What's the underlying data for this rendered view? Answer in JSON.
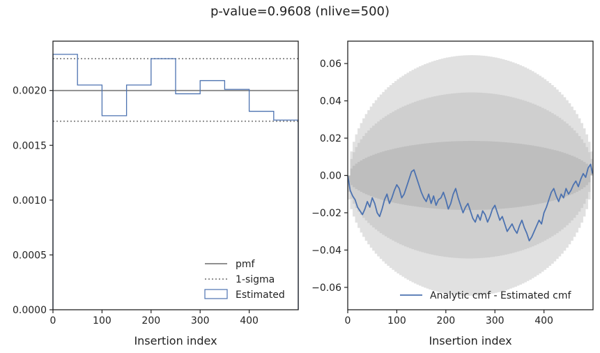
{
  "figure": {
    "title": "p-value=0.9608 (nlive=500)"
  },
  "chart_data": [
    {
      "type": "step",
      "xlabel": "Insertion index",
      "ylabel": "",
      "xlim": [
        0,
        500
      ],
      "ylim": [
        0,
        0.00245
      ],
      "xticks": [
        0,
        100,
        200,
        300,
        400
      ],
      "xtick_labels": [
        "0",
        "100",
        "200",
        "300",
        "400"
      ],
      "yticks": [
        0,
        0.0005,
        0.001,
        0.0015,
        0.002
      ],
      "ytick_labels": [
        "0.0000",
        "0.0005",
        "0.0010",
        "0.0015",
        "0.0020"
      ],
      "pmf": 0.002,
      "sigma_band": [
        0.00172,
        0.00229
      ],
      "bin_edges": [
        0,
        50,
        100,
        150,
        200,
        250,
        300,
        350,
        400,
        450,
        500
      ],
      "estimated": [
        0.00233,
        0.00205,
        0.00177,
        0.00205,
        0.00229,
        0.00197,
        0.00209,
        0.00201,
        0.00181,
        0.00173
      ],
      "legend": {
        "placement": "lower-right",
        "entries": [
          {
            "label": "pmf",
            "style": "solid",
            "color": "#808080"
          },
          {
            "label": "1-sigma",
            "style": "dotted",
            "color": "#808080"
          },
          {
            "label": "Estimated",
            "style": "box",
            "color": "#4c72b0"
          }
        ]
      }
    },
    {
      "type": "line",
      "xlabel": "Insertion index",
      "ylabel": "",
      "xlim": [
        0,
        500
      ],
      "ylim": [
        -0.072,
        0.072
      ],
      "xticks": [
        0,
        100,
        200,
        300,
        400
      ],
      "xtick_labels": [
        "0",
        "100",
        "200",
        "300",
        "400"
      ],
      "yticks": [
        -0.06,
        -0.04,
        -0.02,
        0.0,
        0.02,
        0.04,
        0.06
      ],
      "ytick_labels": [
        "−0.06",
        "−0.04",
        "−0.02",
        "0.00",
        "0.02",
        "0.04",
        "0.06"
      ],
      "bands_sigma": [
        1,
        2,
        3
      ],
      "band_halfwidth_max": [
        0.0185,
        0.0445,
        0.0645
      ],
      "band_colors": [
        "#bebebe",
        "#cfcfcf",
        "#e1e1e1"
      ],
      "series": [
        {
          "name": "Analytic cmf - Estimated cmf",
          "color": "#4c72b0",
          "x": [
            0,
            5,
            10,
            15,
            20,
            25,
            30,
            35,
            40,
            45,
            50,
            55,
            60,
            65,
            70,
            75,
            80,
            85,
            90,
            95,
            100,
            105,
            110,
            115,
            120,
            125,
            130,
            135,
            140,
            145,
            150,
            155,
            160,
            165,
            170,
            175,
            180,
            185,
            190,
            195,
            200,
            205,
            210,
            215,
            220,
            225,
            230,
            235,
            240,
            245,
            250,
            255,
            260,
            265,
            270,
            275,
            280,
            285,
            290,
            295,
            300,
            305,
            310,
            315,
            320,
            325,
            330,
            335,
            340,
            345,
            350,
            355,
            360,
            365,
            370,
            375,
            380,
            385,
            390,
            395,
            400,
            405,
            410,
            415,
            420,
            425,
            430,
            435,
            440,
            445,
            450,
            455,
            460,
            465,
            470,
            475,
            480,
            485,
            490,
            495,
            499
          ],
          "y": [
            0.0,
            -0.008,
            -0.011,
            -0.013,
            -0.017,
            -0.019,
            -0.021,
            -0.018,
            -0.014,
            -0.017,
            -0.012,
            -0.015,
            -0.02,
            -0.022,
            -0.018,
            -0.013,
            -0.01,
            -0.015,
            -0.012,
            -0.008,
            -0.005,
            -0.007,
            -0.012,
            -0.01,
            -0.006,
            -0.002,
            0.002,
            0.003,
            -0.001,
            -0.005,
            -0.009,
            -0.012,
            -0.014,
            -0.01,
            -0.015,
            -0.011,
            -0.016,
            -0.013,
            -0.012,
            -0.009,
            -0.013,
            -0.018,
            -0.015,
            -0.01,
            -0.007,
            -0.012,
            -0.016,
            -0.02,
            -0.017,
            -0.015,
            -0.019,
            -0.023,
            -0.025,
            -0.021,
            -0.024,
            -0.019,
            -0.021,
            -0.025,
            -0.022,
            -0.018,
            -0.016,
            -0.02,
            -0.024,
            -0.022,
            -0.026,
            -0.03,
            -0.028,
            -0.026,
            -0.029,
            -0.031,
            -0.027,
            -0.024,
            -0.028,
            -0.031,
            -0.035,
            -0.033,
            -0.03,
            -0.027,
            -0.024,
            -0.026,
            -0.02,
            -0.017,
            -0.013,
            -0.009,
            -0.007,
            -0.011,
            -0.014,
            -0.01,
            -0.012,
            -0.007,
            -0.01,
            -0.008,
            -0.005,
            -0.003,
            -0.006,
            -0.002,
            0.001,
            -0.001,
            0.004,
            0.006,
            0.001
          ]
        }
      ],
      "legend": {
        "placement": "lower-right",
        "entries": [
          {
            "label": "Analytic cmf - Estimated cmf",
            "style": "solid",
            "color": "#4c72b0"
          }
        ]
      }
    }
  ]
}
